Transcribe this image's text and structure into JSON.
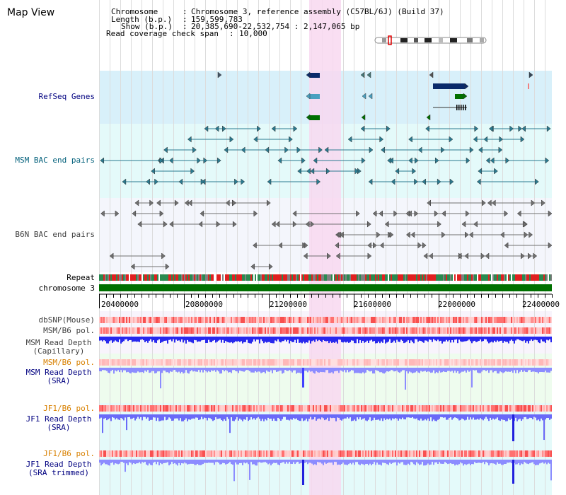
{
  "title": "Map View",
  "header": {
    "chromosome_label": "Chromosome",
    "chromosome_value": "Chromosome 3, reference assembly (C57BL/6J) (Build 37)",
    "length_label": "Length (b.p.)",
    "length_value": "159,599,783",
    "show_label": "Show (b.p.)",
    "show_value": "20,385,690-22,532,754 : 2,147,065 bp",
    "coverage_label": "Read coverage check span",
    "coverage_value": "10,000"
  },
  "tracks": {
    "refseq": "RefSeq Genes",
    "msm_bac": "MSM BAC end pairs",
    "b6n_bac": "B6N BAC end pairs",
    "repeat": "Repeat",
    "chromosome": "chromosome 3",
    "dbsnp": "dbSNP(Mouse)",
    "msm_b6_pol_1": "MSM/B6 pol.",
    "msm_depth_cap_1": "MSM Read Depth",
    "msm_depth_cap_2": "(Capillary)",
    "msm_b6_pol_2": "MSM/B6 pol.",
    "msm_depth_sra_1": "MSM Read Depth",
    "msm_depth_sra_2": "(SRA)",
    "jf1_b6_pol_1": "JF1/B6 pol.",
    "jf1_depth_sra_1": "JF1 Read Depth",
    "jf1_depth_sra_2": "(SRA)",
    "jf1_b6_pol_2": "JF1/B6 pol.",
    "jf1_depth_trim_1": "JF1 Read Depth",
    "jf1_depth_trim_2": "(SRA trimmed)"
  },
  "axis": {
    "ticks": [
      "20400000",
      "20800000",
      "21200000",
      "21600000",
      "22000000",
      "22400000"
    ]
  },
  "colors": {
    "refseq_bg": "#d8f0fa",
    "msm_bg": "#e4fafa",
    "b6n_bg": "#f4f6fc",
    "highlight": "#f8d8f0",
    "chromosome": "#007000",
    "label_blue": "#000080",
    "label_orange": "#d88000",
    "depth_blue": "#3030ff"
  }
}
